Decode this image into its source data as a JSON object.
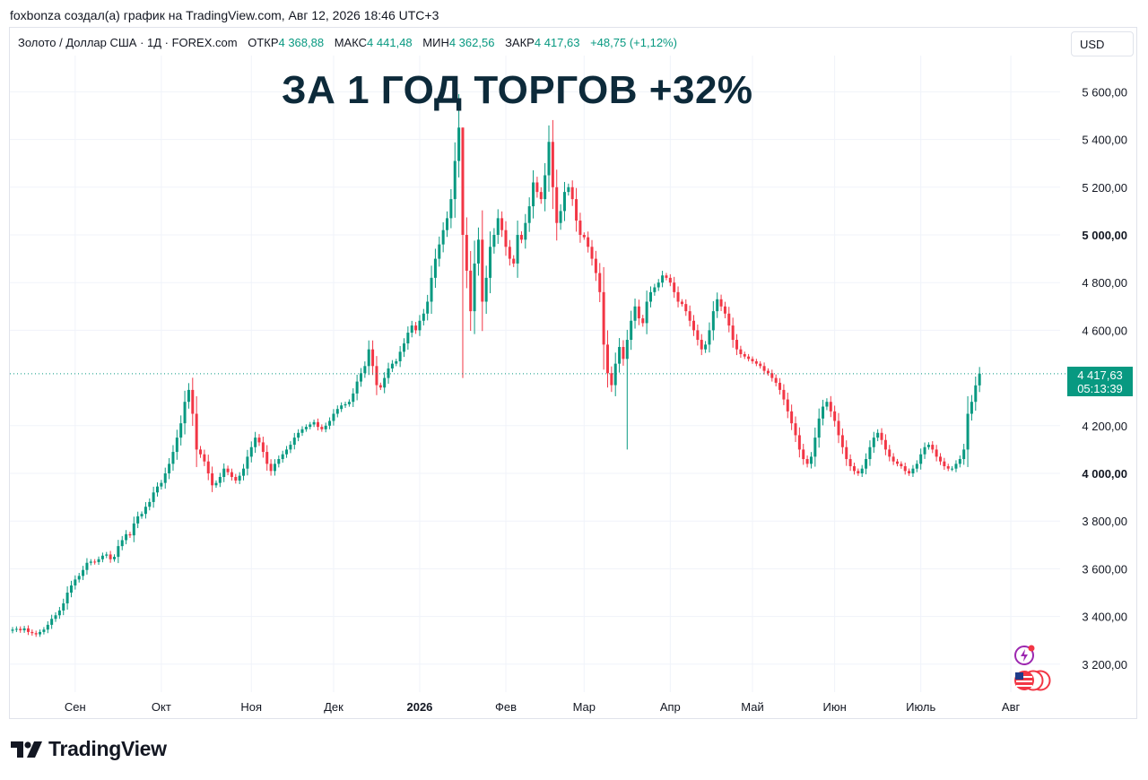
{
  "header": {
    "credit": "foxbonza создал(а) график на TradingView.com, Авг 12, 2026 18:46 UTC+3"
  },
  "legend": {
    "symbol": "Золото / Доллар США · 1Д · FOREX.com",
    "open_label": "ОТКР",
    "open_value": "4 368,88",
    "high_label": "МАКС",
    "high_value": "4 441,48",
    "low_label": "МИН",
    "low_value": "4 362,56",
    "close_label": "ЗАКР",
    "close_value": "4 417,63",
    "change": "+48,75 (+1,12%)"
  },
  "currency_button": "USD",
  "headline": "ЗА 1 ГОД ТОРГОВ +32%",
  "price_badge": {
    "price": "4 417,63",
    "countdown": "05:13:39"
  },
  "brand": {
    "name": "TradingView"
  },
  "icons": [
    "lightning-event-icon",
    "us-flag-events-icon",
    "tradingview-logo-icon"
  ],
  "colors": {
    "up": "#089981",
    "down": "#f23645",
    "badge": "#089981",
    "headline": "#0d2a3a"
  },
  "chart_data": {
    "type": "candlestick",
    "title": "",
    "symbol": "Золото / Доллар США · 1Д · FOREX.com",
    "currency": "USD",
    "ylim": [
      3080,
      5700
    ],
    "y_ticks": [
      {
        "value": 3200,
        "label": "3 200,00"
      },
      {
        "value": 3400,
        "label": "3 400,00"
      },
      {
        "value": 3600,
        "label": "3 600,00"
      },
      {
        "value": 3800,
        "label": "3 800,00"
      },
      {
        "value": 4000,
        "label": "4 000,00",
        "bold": true
      },
      {
        "value": 4200,
        "label": "4 200,00"
      },
      {
        "value": 4600,
        "label": "4 600,00"
      },
      {
        "value": 4800,
        "label": "4 800,00"
      },
      {
        "value": 5000,
        "label": "5 000,00",
        "bold": true
      },
      {
        "value": 5200,
        "label": "5 200,00"
      },
      {
        "value": 5400,
        "label": "5 400,00"
      },
      {
        "value": 5600,
        "label": "5 600,00"
      }
    ],
    "x_ticks": [
      {
        "index": 16,
        "label": "Сен"
      },
      {
        "index": 38,
        "label": "Окт"
      },
      {
        "index": 61,
        "label": "Ноя"
      },
      {
        "index": 82,
        "label": "Дек"
      },
      {
        "index": 104,
        "label": "2026",
        "bold": true
      },
      {
        "index": 126,
        "label": "Фев"
      },
      {
        "index": 146,
        "label": "Мар"
      },
      {
        "index": 168,
        "label": "Апр"
      },
      {
        "index": 189,
        "label": "Май"
      },
      {
        "index": 210,
        "label": "Июн"
      },
      {
        "index": 232,
        "label": "Июль"
      },
      {
        "index": 255,
        "label": "Авг"
      }
    ],
    "last_price": 4417.63,
    "grid": true,
    "close_series": [
      3345,
      3348,
      3342,
      3350,
      3335,
      3330,
      3325,
      3335,
      3345,
      3365,
      3390,
      3405,
      3425,
      3455,
      3500,
      3530,
      3555,
      3570,
      3595,
      3625,
      3630,
      3628,
      3640,
      3655,
      3660,
      3640,
      3650,
      3695,
      3720,
      3745,
      3740,
      3790,
      3820,
      3830,
      3860,
      3880,
      3920,
      3945,
      3960,
      4000,
      4040,
      4090,
      4150,
      4210,
      4300,
      4350,
      4250,
      4100,
      4080,
      4050,
      4000,
      3950,
      3960,
      3985,
      4020,
      4005,
      3985,
      3970,
      3990,
      4020,
      4070,
      4110,
      4150,
      4130,
      4090,
      4040,
      4010,
      4040,
      4060,
      4080,
      4100,
      4120,
      4150,
      4170,
      4185,
      4195,
      4205,
      4215,
      4195,
      4185,
      4200,
      4220,
      4250,
      4270,
      4285,
      4290,
      4300,
      4335,
      4385,
      4420,
      4450,
      4520,
      4450,
      4370,
      4360,
      4400,
      4440,
      4460,
      4470,
      4510,
      4545,
      4590,
      4620,
      4600,
      4640,
      4670,
      4720,
      4820,
      4900,
      4960,
      5020,
      5070,
      5150,
      5310,
      5450,
      5000,
      4850,
      4680,
      4880,
      4980,
      4720,
      4820,
      4950,
      5000,
      5070,
      5020,
      4950,
      4900,
      4880,
      5000,
      4980,
      5050,
      5120,
      5220,
      5180,
      5150,
      5250,
      5390,
      5200,
      5050,
      5100,
      5180,
      5200,
      5150,
      5060,
      5000,
      4990,
      4950,
      4900,
      4840,
      4760,
      4540,
      4420,
      4370,
      4460,
      4530,
      4480,
      4560,
      4640,
      4700,
      4650,
      4630,
      4720,
      4760,
      4780,
      4800,
      4830,
      4820,
      4800,
      4760,
      4720,
      4710,
      4680,
      4640,
      4600,
      4560,
      4520,
      4540,
      4600,
      4680,
      4730,
      4700,
      4670,
      4620,
      4560,
      4520,
      4500,
      4490,
      4480,
      4470,
      4460,
      4450,
      4430,
      4420,
      4400,
      4380,
      4350,
      4310,
      4260,
      4210,
      4160,
      4100,
      4060,
      4040,
      4070,
      4150,
      4230,
      4280,
      4300,
      4260,
      4220,
      4160,
      4110,
      4060,
      4030,
      4010,
      4000,
      4020,
      4060,
      4110,
      4150,
      4170,
      4140,
      4100,
      4070,
      4050,
      4040,
      4030,
      4010,
      4000,
      4020,
      4040,
      4080,
      4110,
      4120,
      4100,
      4070,
      4050,
      4030,
      4020,
      4020,
      4040,
      4060,
      4100,
      4250,
      4300,
      4369,
      4418
    ]
  }
}
